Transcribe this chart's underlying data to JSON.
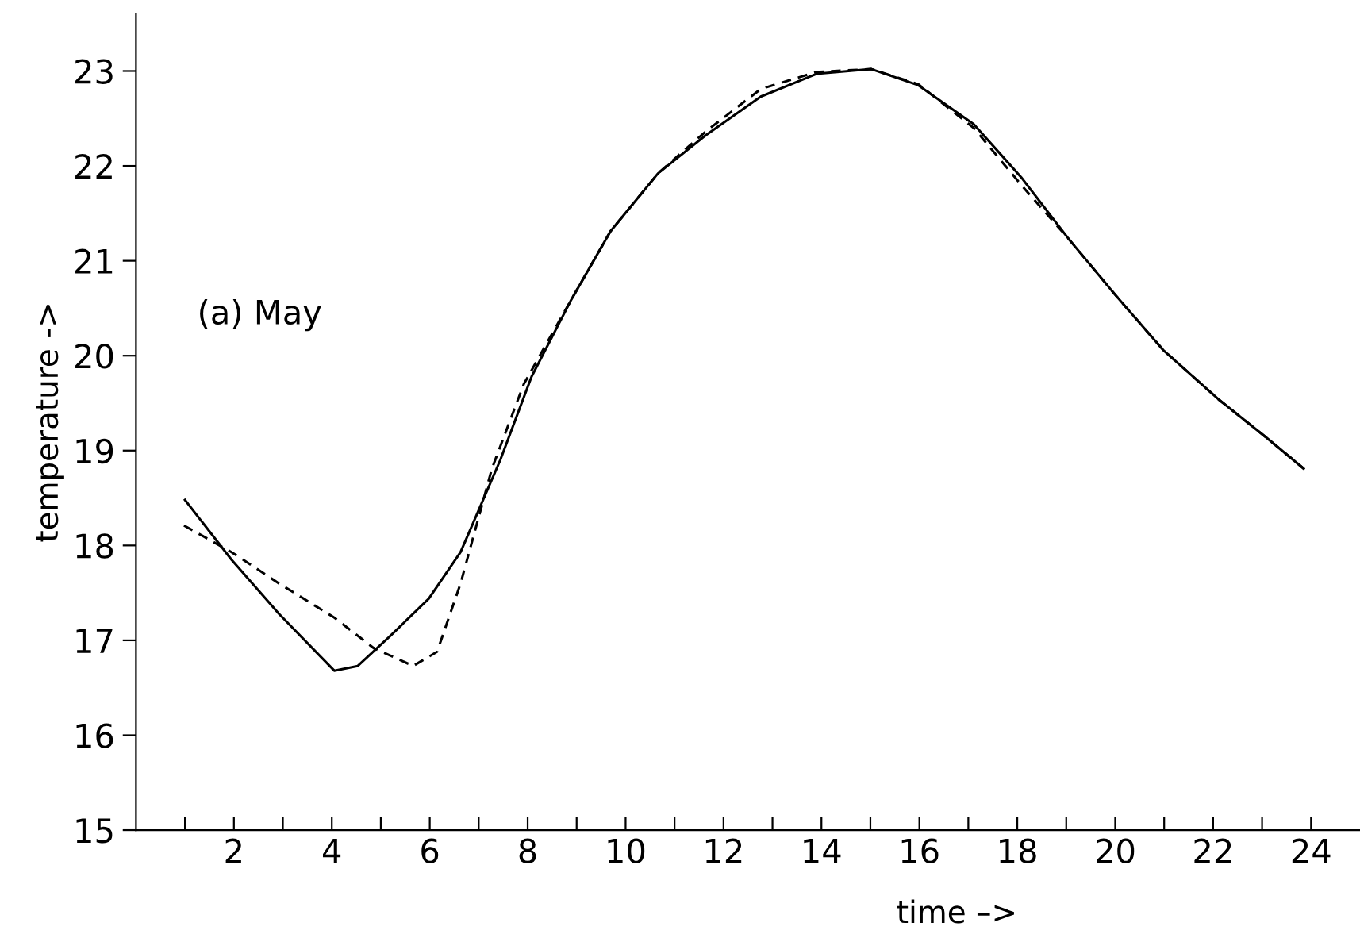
{
  "chart_data": {
    "type": "line",
    "xlabel": "time –>",
    "ylabel": "temperature ->",
    "annotations": [
      "(a) May"
    ],
    "xlim": [
      0,
      25
    ],
    "ylim": [
      15,
      23.6
    ],
    "xticks": [
      {
        "value": 1,
        "label": null
      },
      2,
      {
        "value": 3,
        "label": null
      },
      4,
      {
        "value": 5,
        "label": null
      },
      6,
      {
        "value": 7,
        "label": null
      },
      8,
      {
        "value": 9,
        "label": null
      },
      10,
      {
        "value": 11,
        "label": null
      },
      12,
      {
        "value": 13,
        "label": null
      },
      14,
      {
        "value": 15,
        "label": null
      },
      16,
      {
        "value": 17,
        "label": null
      },
      18,
      {
        "value": 19,
        "label": null
      },
      20,
      {
        "value": 21,
        "label": null
      },
      22,
      {
        "value": 23,
        "label": null
      },
      24
    ],
    "yticks": [
      15,
      16,
      17,
      18,
      19,
      20,
      21,
      22,
      23
    ],
    "grid": false,
    "legend": false,
    "marker": "none",
    "series": [
      {
        "color": "#000000",
        "line_style": "solid",
        "x": [
          1.0,
          1.95,
          2.92,
          4.05,
          4.53,
          5.18,
          5.98,
          6.63,
          7.44,
          8.08,
          8.89,
          9.69,
          10.66,
          11.63,
          12.76,
          13.9,
          15.02,
          15.98,
          17.11,
          18.08,
          19.05,
          20.02,
          20.98,
          22.11,
          23.08,
          23.85
        ],
        "values": [
          18.48,
          17.85,
          17.28,
          16.68,
          16.73,
          17.04,
          17.44,
          17.93,
          18.9,
          19.78,
          20.59,
          21.31,
          21.92,
          22.32,
          22.73,
          22.97,
          23.02,
          22.85,
          22.44,
          21.88,
          21.23,
          20.63,
          20.06,
          19.54,
          19.14,
          18.81
        ]
      },
      {
        "color": "#000000",
        "line_style": "dashed",
        "x": [
          0.98,
          1.95,
          2.92,
          4.05,
          4.85,
          5.66,
          6.15,
          6.63,
          7.27,
          7.92,
          8.89,
          9.69,
          10.66,
          11.63,
          12.76,
          13.9,
          15.02,
          15.98,
          17.11,
          18.08,
          19.05,
          20.02,
          20.98,
          22.11,
          23.08,
          23.85
        ],
        "values": [
          18.21,
          17.93,
          17.6,
          17.24,
          16.92,
          16.73,
          16.88,
          17.6,
          18.81,
          19.7,
          20.59,
          21.31,
          21.92,
          22.36,
          22.81,
          22.99,
          23.02,
          22.86,
          22.4,
          21.8,
          21.23,
          20.63,
          20.06,
          19.54,
          19.14,
          18.81
        ]
      }
    ]
  }
}
